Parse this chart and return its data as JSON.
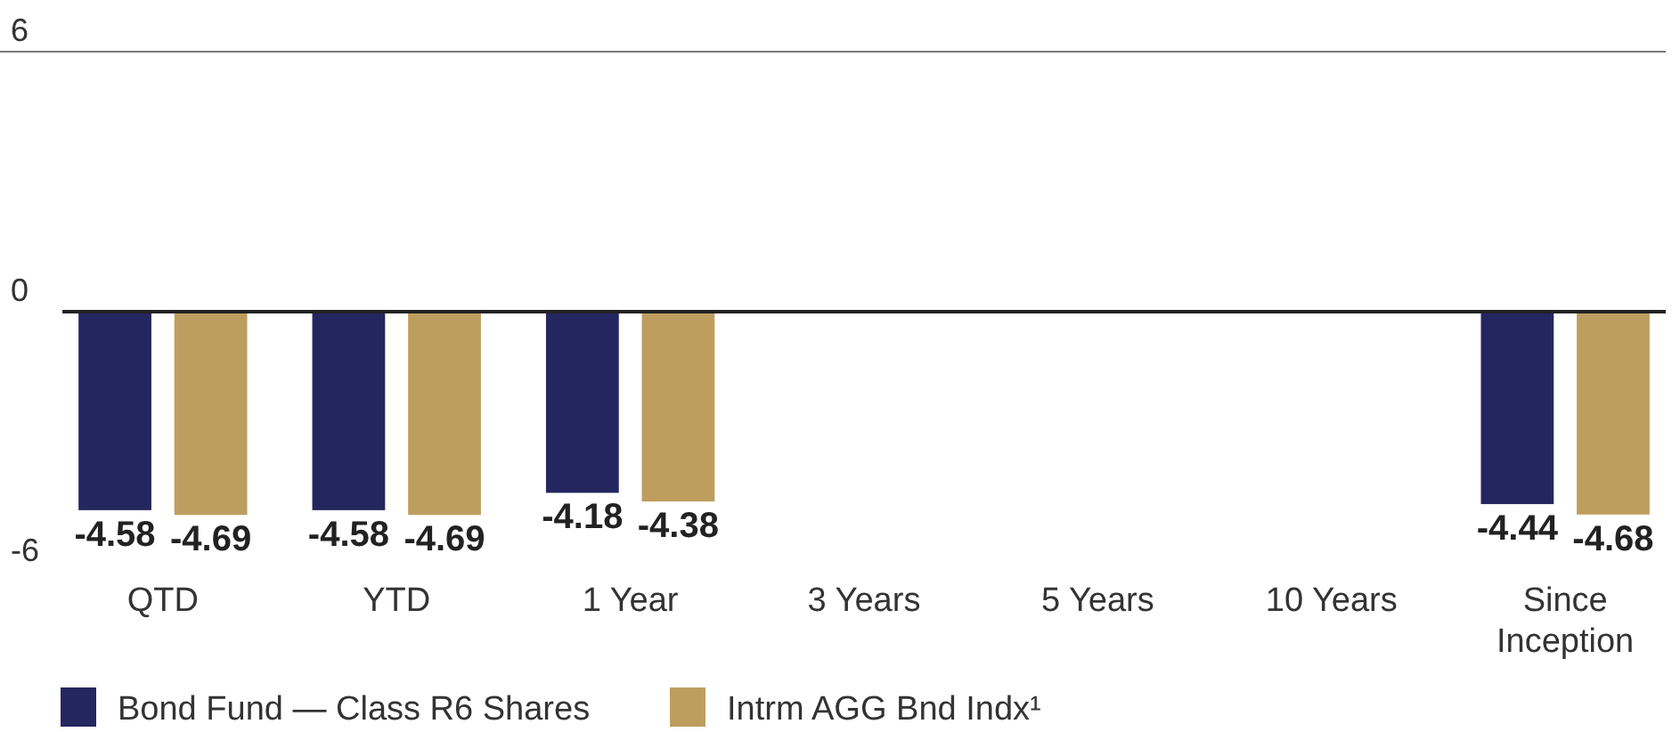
{
  "chart_data": {
    "type": "bar",
    "categories": [
      "QTD",
      "YTD",
      "1 Year",
      "3 Years",
      "5 Years",
      "10 Years",
      "Since Inception"
    ],
    "series": [
      {
        "name": "Bond Fund — Class R6 Shares",
        "color": "#24265f",
        "values": [
          -4.58,
          -4.58,
          -4.18,
          null,
          null,
          null,
          -4.44
        ]
      },
      {
        "name": "Intrm AGG Bnd Indx¹",
        "color": "#bd9e5e",
        "values": [
          -4.69,
          -4.69,
          -4.38,
          null,
          null,
          null,
          -4.68
        ]
      }
    ],
    "ylim": [
      -6,
      6
    ],
    "yticks": [
      -6,
      0,
      6
    ],
    "grid": "y",
    "data_labels": true,
    "legend": "bottom left"
  }
}
